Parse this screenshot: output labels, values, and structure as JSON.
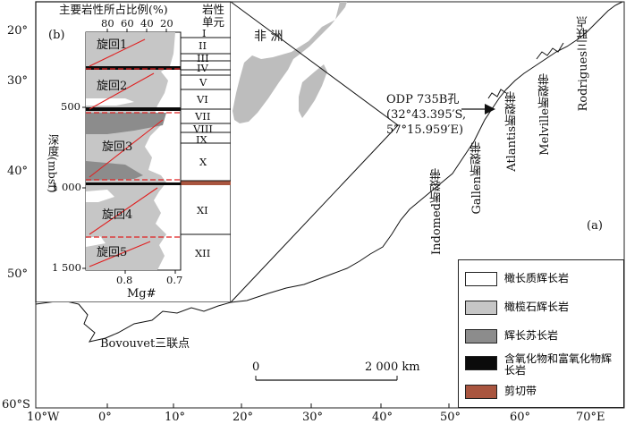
{
  "figure": {
    "map_label": "(a)",
    "inset_label": "(b)",
    "africa_label": "非  洲",
    "ocean_labels": [],
    "hole": {
      "name": "ODP 735B孔",
      "coord_lat": "(32°43.395′S,",
      "coord_lon": "57°15.959′E)"
    },
    "fractures": [
      "Indomed断裂带",
      "Gallen断裂带",
      "Atlantis断裂带",
      "Melville断裂带"
    ],
    "triple_junctions": [
      "Rodrigues三联点",
      "Bovouvet三联点"
    ],
    "scale_bar": {
      "start": "0",
      "end": "2 000 km"
    }
  },
  "lat_ticks": [
    "20°",
    "30°",
    "40°",
    "50°",
    "60°S"
  ],
  "lon_ticks": [
    "10°W",
    "0°",
    "10°",
    "20°",
    "30°",
    "40°",
    "50°",
    "60°",
    "70°E"
  ],
  "inset": {
    "top_title": "主要岩性所占比例(%)",
    "percent_ticks": [
      "80",
      "60",
      "40",
      "20"
    ],
    "unit_header_1": "岩性",
    "unit_header_2": "单元",
    "depth_axis_label": "深度(mbsf)",
    "depth_ticks": [
      "500",
      "1 000",
      "1 500"
    ],
    "mg_ticks": [
      "0.8",
      "0.7"
    ],
    "mg_label": "Mg#",
    "cycles": [
      "旋回1",
      "旋回2",
      "旋回3",
      "旋回4",
      "旋回5"
    ],
    "units": [
      "I",
      "II",
      "III",
      "IV",
      "V",
      "VI",
      "VII",
      "VIII",
      "IX",
      "X",
      "XI",
      "XII"
    ]
  },
  "legend": [
    {
      "label": "橄长质辉长岩",
      "color": "#ffffff"
    },
    {
      "label": "橄榄石辉长岩",
      "color": "#c6c6c6"
    },
    {
      "label": "辉长苏长岩",
      "color": "#8c8c8c"
    },
    {
      "label": "含氧化物和富氧化物辉长岩",
      "color": "#0b0b0b"
    },
    {
      "label": "剪切带",
      "color": "#a9553f"
    }
  ]
}
